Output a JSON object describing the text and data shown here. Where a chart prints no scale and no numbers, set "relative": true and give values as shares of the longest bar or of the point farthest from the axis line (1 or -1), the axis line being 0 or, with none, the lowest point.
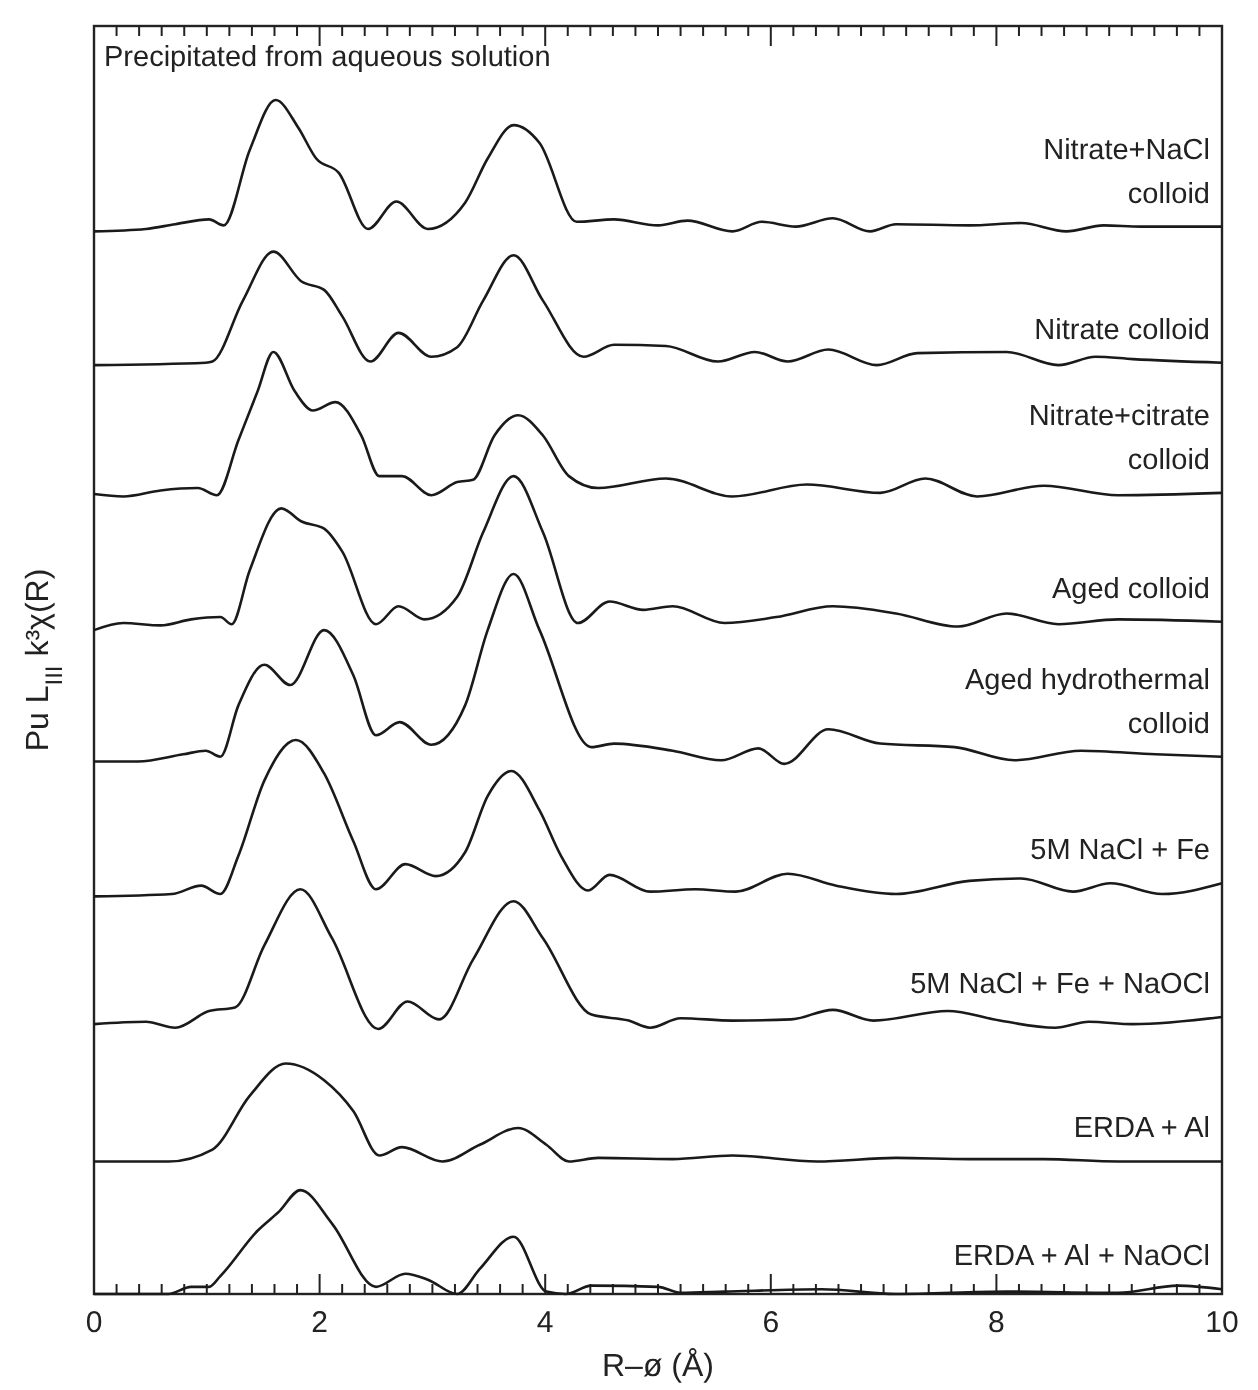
{
  "chart_data": {
    "type": "line",
    "relative": true,
    "xlabel": "R–ø (Å)",
    "ylabel": "Pu L$_{III}$ k³χ(R)",
    "annotations": [
      "Precipitated from aqueous solution"
    ],
    "xlim": [
      0,
      10
    ],
    "xticks": [
      0,
      {
        "value": 0.2,
        "label": null
      },
      {
        "value": 0.4,
        "label": null
      },
      {
        "value": 0.6,
        "label": null
      },
      {
        "value": 0.8,
        "label": null
      },
      {
        "value": 1,
        "label": null
      },
      {
        "value": 1.2,
        "label": null
      },
      {
        "value": 1.4,
        "label": null
      },
      {
        "value": 1.6,
        "label": null
      },
      {
        "value": 1.8,
        "label": null
      },
      2,
      {
        "value": 2.2,
        "label": null
      },
      {
        "value": 2.4,
        "label": null
      },
      {
        "value": 2.6,
        "label": null
      },
      {
        "value": 2.8,
        "label": null
      },
      {
        "value": 3,
        "label": null
      },
      {
        "value": 3.2,
        "label": null
      },
      {
        "value": 3.4,
        "label": null
      },
      {
        "value": 3.6,
        "label": null
      },
      {
        "value": 3.8,
        "label": null
      },
      4,
      {
        "value": 4.2,
        "label": null
      },
      {
        "value": 4.4,
        "label": null
      },
      {
        "value": 4.6,
        "label": null
      },
      {
        "value": 4.8,
        "label": null
      },
      {
        "value": 5,
        "label": null
      },
      {
        "value": 5.2,
        "label": null
      },
      {
        "value": 5.4,
        "label": null
      },
      {
        "value": 5.6,
        "label": null
      },
      {
        "value": 5.8,
        "label": null
      },
      6,
      {
        "value": 6.2,
        "label": null
      },
      {
        "value": 6.4,
        "label": null
      },
      {
        "value": 6.6,
        "label": null
      },
      {
        "value": 6.8,
        "label": null
      },
      {
        "value": 7,
        "label": null
      },
      {
        "value": 7.2,
        "label": null
      },
      {
        "value": 7.4,
        "label": null
      },
      {
        "value": 7.6,
        "label": null
      },
      {
        "value": 7.8,
        "label": null
      },
      8,
      {
        "value": 8.2,
        "label": null
      },
      {
        "value": 8.4,
        "label": null
      },
      {
        "value": 8.6,
        "label": null
      },
      {
        "value": 8.8,
        "label": null
      },
      {
        "value": 9,
        "label": null
      },
      {
        "value": 9.2,
        "label": null
      },
      {
        "value": 9.4,
        "label": null
      },
      {
        "value": 9.6,
        "label": null
      },
      {
        "value": 9.8,
        "label": null
      },
      10
    ],
    "marker": "none",
    "line_style": "solid",
    "series": [
      {
        "name": "Nitrate+NaCl\ncolloid",
        "color": "#1a1a1a",
        "x": [
          0,
          0.46,
          0.72,
          1.02,
          1.15,
          1.38,
          1.61,
          1.81,
          1.97,
          2.17,
          2.43,
          2.68,
          2.96,
          3.29,
          3.49,
          3.72,
          3.95,
          4.28,
          4.61,
          5.0,
          5.26,
          5.66,
          5.92,
          6.22,
          6.55,
          6.88,
          7.11,
          7.76,
          8.22,
          8.62,
          8.95,
          9.28,
          10
        ],
        "values": [
          0.89,
          0.892,
          0.896,
          0.9,
          0.895,
          0.958,
          1.0,
          0.977,
          0.951,
          0.939,
          0.892,
          0.915,
          0.892,
          0.914,
          0.951,
          0.979,
          0.964,
          0.898,
          0.9,
          0.895,
          0.899,
          0.89,
          0.898,
          0.894,
          0.901,
          0.89,
          0.896,
          0.895,
          0.897,
          0.89,
          0.895,
          0.894,
          0.894
        ]
      },
      {
        "name": "Nitrate colloid",
        "color": "#1a1a1a",
        "x": [
          0,
          0.99,
          1.05,
          1.32,
          1.59,
          1.84,
          2.04,
          2.2,
          2.45,
          2.7,
          2.99,
          3.22,
          3.45,
          3.72,
          3.98,
          4.34,
          4.61,
          5.07,
          5.53,
          5.86,
          6.15,
          6.51,
          6.94,
          7.3,
          8.09,
          8.55,
          8.88,
          9.21,
          10
        ],
        "values": [
          0.778,
          0.78,
          0.781,
          0.832,
          0.873,
          0.848,
          0.841,
          0.819,
          0.781,
          0.805,
          0.785,
          0.793,
          0.832,
          0.87,
          0.832,
          0.785,
          0.795,
          0.794,
          0.781,
          0.789,
          0.781,
          0.791,
          0.778,
          0.788,
          0.789,
          0.778,
          0.785,
          0.783,
          0.78
        ]
      },
      {
        "name": "Nitrate+citrate\ncolloid",
        "color": "#1a1a1a",
        "x": [
          0,
          0.26,
          0.59,
          0.92,
          1.09,
          1.28,
          1.45,
          1.59,
          1.78,
          1.94,
          2.14,
          2.37,
          2.53,
          2.73,
          2.99,
          3.22,
          3.36,
          3.55,
          3.76,
          3.98,
          4.21,
          4.47,
          5.07,
          5.66,
          6.32,
          6.97,
          7.37,
          7.83,
          8.42,
          9.08,
          10
        ],
        "values": [
          0.67,
          0.668,
          0.673,
          0.675,
          0.669,
          0.715,
          0.756,
          0.789,
          0.756,
          0.74,
          0.747,
          0.719,
          0.685,
          0.685,
          0.669,
          0.68,
          0.682,
          0.719,
          0.736,
          0.719,
          0.685,
          0.675,
          0.683,
          0.668,
          0.678,
          0.671,
          0.683,
          0.668,
          0.677,
          0.669,
          0.671
        ]
      },
      {
        "name": "Aged colloid",
        "color": "#1a1a1a",
        "x": [
          0,
          0.26,
          0.59,
          0.86,
          1.12,
          1.22,
          1.38,
          1.66,
          1.84,
          2.04,
          2.2,
          2.5,
          2.7,
          2.93,
          3.22,
          3.45,
          3.72,
          3.98,
          4.29,
          4.57,
          4.87,
          5.13,
          5.59,
          6.05,
          6.55,
          7.11,
          7.66,
          8.09,
          8.55,
          9.08,
          10
        ],
        "values": [
          0.556,
          0.562,
          0.56,
          0.565,
          0.567,
          0.561,
          0.606,
          0.658,
          0.647,
          0.641,
          0.622,
          0.561,
          0.576,
          0.565,
          0.584,
          0.638,
          0.685,
          0.638,
          0.562,
          0.58,
          0.573,
          0.576,
          0.562,
          0.567,
          0.576,
          0.57,
          0.559,
          0.57,
          0.561,
          0.565,
          0.563
        ]
      },
      {
        "name": "Aged hydrothermal\ncolloid",
        "color": "#1a1a1a",
        "x": [
          0,
          0.39,
          0.79,
          0.99,
          1.12,
          1.28,
          1.51,
          1.74,
          2.04,
          2.3,
          2.5,
          2.71,
          2.99,
          3.29,
          3.49,
          3.72,
          3.95,
          4.41,
          4.61,
          5.13,
          5.56,
          5.89,
          6.12,
          6.51,
          6.97,
          7.63,
          8.16,
          8.75,
          9.41,
          10
        ],
        "values": [
          0.446,
          0.446,
          0.452,
          0.455,
          0.45,
          0.493,
          0.527,
          0.51,
          0.556,
          0.518,
          0.468,
          0.479,
          0.46,
          0.493,
          0.556,
          0.603,
          0.556,
          0.458,
          0.461,
          0.455,
          0.447,
          0.457,
          0.444,
          0.473,
          0.461,
          0.458,
          0.447,
          0.455,
          0.452,
          0.45
        ]
      },
      {
        "name": "5M NaCl + Fe",
        "color": "#1a1a1a",
        "x": [
          0,
          0.69,
          0.95,
          1.12,
          1.28,
          1.51,
          1.79,
          2.04,
          2.3,
          2.5,
          2.76,
          3.03,
          3.29,
          3.49,
          3.7,
          3.95,
          4.14,
          4.38,
          4.57,
          4.93,
          5.33,
          5.69,
          6.15,
          6.58,
          7.11,
          7.76,
          8.22,
          8.68,
          9.01,
          9.47,
          10
        ],
        "values": [
          0.333,
          0.335,
          0.342,
          0.335,
          0.367,
          0.43,
          0.464,
          0.436,
          0.379,
          0.339,
          0.36,
          0.35,
          0.37,
          0.417,
          0.438,
          0.405,
          0.367,
          0.338,
          0.351,
          0.337,
          0.339,
          0.337,
          0.352,
          0.342,
          0.335,
          0.346,
          0.348,
          0.337,
          0.344,
          0.335,
          0.344
        ]
      },
      {
        "name": "5M NaCl + Fe + NaOCl",
        "color": "#1a1a1a",
        "x": [
          0,
          0.46,
          0.72,
          1.02,
          1.25,
          1.51,
          1.83,
          2.11,
          2.52,
          2.78,
          3.06,
          3.36,
          3.72,
          3.98,
          4.41,
          4.74,
          4.93,
          5.2,
          5.66,
          6.18,
          6.55,
          6.91,
          7.57,
          8.03,
          8.52,
          8.82,
          9.21,
          10
        ],
        "values": [
          0.226,
          0.228,
          0.223,
          0.237,
          0.24,
          0.292,
          0.339,
          0.298,
          0.222,
          0.245,
          0.23,
          0.28,
          0.329,
          0.298,
          0.234,
          0.229,
          0.223,
          0.231,
          0.229,
          0.23,
          0.238,
          0.229,
          0.237,
          0.229,
          0.223,
          0.228,
          0.226,
          0.232
        ]
      },
      {
        "name": "ERDA + Al",
        "color": "#1a1a1a",
        "x": [
          0,
          0.66,
          1.05,
          1.38,
          1.7,
          2.04,
          2.3,
          2.53,
          2.73,
          3.09,
          3.42,
          3.76,
          4.01,
          4.21,
          4.47,
          5.13,
          5.66,
          6.41,
          7.11,
          7.76,
          8.42,
          9.08,
          10
        ],
        "values": [
          0.111,
          0.111,
          0.121,
          0.166,
          0.193,
          0.179,
          0.153,
          0.116,
          0.123,
          0.111,
          0.125,
          0.139,
          0.125,
          0.111,
          0.114,
          0.113,
          0.116,
          0.111,
          0.114,
          0.113,
          0.113,
          0.111,
          0.111
        ]
      },
      {
        "name": "ERDA + Al + NaOCl",
        "color": "#1a1a1a",
        "x": [
          0,
          0.66,
          0.86,
          1.02,
          1.12,
          1.45,
          1.64,
          1.83,
          2.11,
          2.5,
          2.76,
          2.96,
          3.22,
          3.42,
          3.72,
          4.01,
          4.18,
          4.41,
          5.0,
          5.2,
          5.59,
          6.45,
          7.11,
          8.09,
          9.08,
          9.61,
          10
        ],
        "values": [
          0,
          0,
          0.006,
          0.006,
          0.015,
          0.053,
          0.069,
          0.087,
          0.059,
          0.006,
          0.017,
          0.012,
          0,
          0.021,
          0.048,
          0.002,
          0,
          0.007,
          0.006,
          0.001,
          0.002,
          0.004,
          0,
          0.002,
          0.001,
          0.007,
          0.004
        ]
      }
    ]
  }
}
